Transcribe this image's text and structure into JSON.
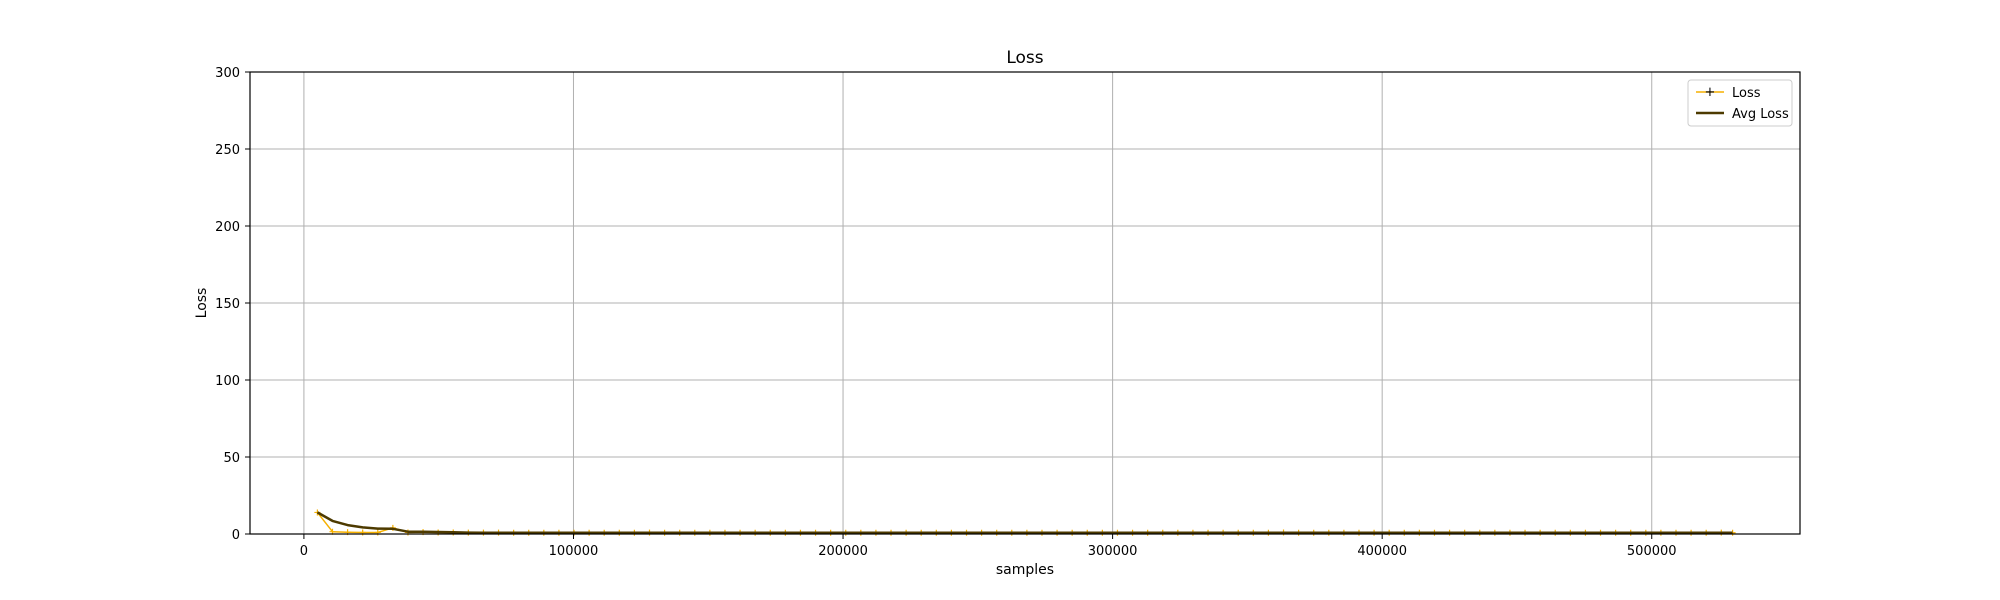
{
  "chart_data": {
    "type": "line",
    "title": "Loss",
    "xlabel": "samples",
    "ylabel": "Loss",
    "xlim": [
      -20000,
      555000
    ],
    "ylim": [
      0,
      300
    ],
    "xticks": [
      0,
      100000,
      200000,
      300000,
      400000,
      500000
    ],
    "xtick_labels": [
      "0",
      "100000",
      "200000",
      "300000",
      "400000",
      "500000"
    ],
    "yticks": [
      0,
      50,
      100,
      150,
      200,
      250,
      300
    ],
    "ytick_labels": [
      "0",
      "50",
      "100",
      "150",
      "200",
      "250",
      "300"
    ],
    "grid": true,
    "legend_placement": "top-right",
    "series": [
      {
        "name": "Loss",
        "color": "#f5b000",
        "marker": "+",
        "x": [
          5000,
          10600,
          16200,
          21800,
          27400,
          33000,
          38600,
          44200,
          49800,
          55400,
          61000,
          66600,
          72200,
          77800,
          83400,
          89000,
          94600,
          100200,
          105800,
          111400,
          117000,
          122600,
          128200,
          133800,
          139400,
          145000,
          150600,
          156200,
          161800,
          167400,
          173000,
          178600,
          184200,
          189800,
          195400,
          201000,
          206600,
          212200,
          217800,
          223400,
          229000,
          234600,
          240200,
          245800,
          251400,
          257000,
          262600,
          268200,
          273800,
          279400,
          285000,
          290600,
          296200,
          301800,
          307400,
          313000,
          318600,
          324200,
          329800,
          335400,
          341000,
          346600,
          352200,
          357800,
          363400,
          369000,
          374600,
          380200,
          385800,
          391400,
          397000,
          402600,
          408200,
          413800,
          419400,
          425000,
          430600,
          436200,
          441800,
          447400,
          453000,
          458600,
          464200,
          469800,
          475400,
          481000,
          486600,
          492200,
          497800,
          503400,
          509000,
          514600,
          520200,
          525800,
          530000
        ],
        "y": [
          14,
          1.5,
          1.2,
          1.0,
          1.0,
          4.0,
          1.0,
          1.2,
          1.0,
          1.0,
          0.9,
          0.9,
          0.9,
          0.8,
          0.8,
          0.8,
          0.8,
          0.8,
          0.8,
          0.8,
          0.8,
          0.8,
          0.9,
          0.8,
          0.8,
          0.8,
          0.8,
          0.8,
          0.8,
          0.8,
          0.8,
          0.8,
          0.8,
          0.8,
          0.8,
          0.8,
          0.8,
          0.8,
          0.8,
          0.8,
          0.8,
          0.8,
          0.8,
          0.8,
          0.8,
          0.8,
          0.8,
          0.8,
          0.8,
          0.8,
          0.8,
          0.8,
          0.8,
          0.8,
          0.8,
          0.8,
          0.8,
          0.8,
          0.8,
          0.8,
          0.8,
          0.8,
          0.8,
          0.8,
          1.0,
          0.8,
          0.8,
          0.8,
          0.8,
          0.8,
          0.8,
          0.8,
          0.8,
          0.8,
          0.8,
          0.8,
          0.8,
          0.8,
          0.8,
          0.8,
          0.8,
          0.8,
          0.8,
          0.8,
          0.8,
          0.8,
          0.8,
          0.8,
          0.8,
          0.8,
          0.8,
          0.8,
          0.8,
          0.9,
          0.8
        ]
      },
      {
        "name": "Avg Loss",
        "color": "#4d3a00",
        "marker": "none",
        "x": [
          5000,
          10600,
          16200,
          21800,
          27400,
          33000,
          38600,
          44200,
          49800,
          55400,
          61000,
          66600,
          72200,
          77800,
          83400,
          89000,
          94600,
          100200,
          105800,
          111400,
          117000,
          122600,
          128200,
          133800,
          139400,
          145000,
          150600,
          156200,
          161800,
          167400,
          173000,
          178600,
          184200,
          189800,
          195400,
          201000,
          206600,
          212200,
          217800,
          223400,
          229000,
          234600,
          240200,
          245800,
          251400,
          257000,
          262600,
          268200,
          273800,
          279400,
          285000,
          290600,
          296200,
          301800,
          307400,
          313000,
          318600,
          324200,
          329800,
          335400,
          341000,
          346600,
          352200,
          357800,
          363400,
          369000,
          374600,
          380200,
          385800,
          391400,
          397000,
          402600,
          408200,
          413800,
          419400,
          425000,
          430600,
          436200,
          441800,
          447400,
          453000,
          458600,
          464200,
          469800,
          475400,
          481000,
          486600,
          492200,
          497800,
          503400,
          509000,
          514600,
          520200,
          525800,
          530000
        ],
        "y": [
          14,
          8.5,
          5.8,
          4.3,
          3.5,
          3.4,
          1.5,
          1.4,
          1.3,
          1.2,
          0.9,
          0.8,
          0.8,
          0.8,
          0.8,
          0.8,
          0.8,
          0.8,
          0.8,
          0.8,
          0.8,
          0.8,
          0.8,
          0.8,
          0.8,
          0.8,
          0.8,
          0.8,
          0.8,
          0.8,
          0.8,
          0.8,
          0.8,
          0.8,
          0.8,
          0.8,
          0.8,
          0.8,
          0.8,
          0.8,
          0.8,
          0.8,
          0.8,
          0.8,
          0.8,
          0.8,
          0.8,
          0.8,
          0.8,
          0.8,
          0.8,
          0.8,
          0.8,
          0.8,
          0.8,
          0.8,
          0.8,
          0.8,
          0.8,
          0.8,
          0.8,
          0.8,
          0.8,
          0.8,
          0.8,
          0.8,
          0.8,
          0.8,
          0.8,
          0.8,
          0.8,
          0.8,
          0.8,
          0.8,
          0.8,
          0.8,
          0.8,
          0.8,
          0.8,
          0.8,
          0.8,
          0.8,
          0.8,
          0.8,
          0.8,
          0.8,
          0.8,
          0.8,
          0.8,
          0.8,
          0.8,
          0.8,
          0.8,
          0.8,
          0.8
        ]
      }
    ]
  }
}
